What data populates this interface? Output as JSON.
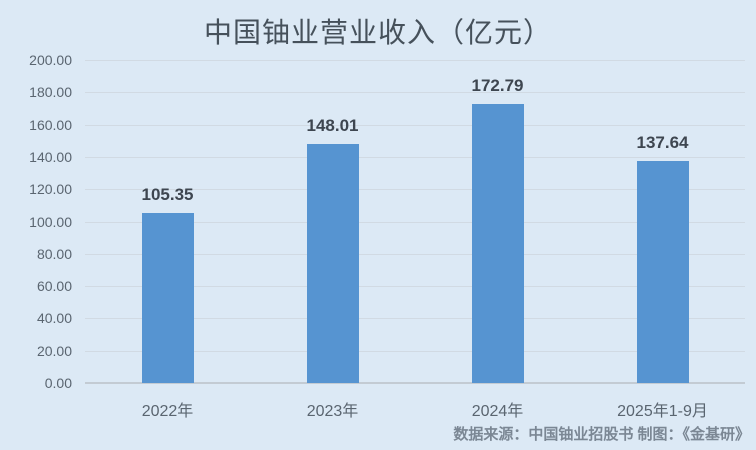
{
  "chart_data": {
    "type": "bar",
    "title": "中国铀业营业收入（亿元）",
    "categories": [
      "2022年",
      "2023年",
      "2024年",
      "2025年1-9月"
    ],
    "values": [
      105.35,
      148.01,
      172.79,
      137.64
    ],
    "value_labels": [
      "105.35",
      "148.01",
      "172.79",
      "137.64"
    ],
    "ylabel": "",
    "xlabel": "",
    "ylim": [
      0,
      200
    ],
    "ytick_step": 20,
    "ytick_labels": [
      "0.00",
      "20.00",
      "40.00",
      "60.00",
      "80.00",
      "100.00",
      "120.00",
      "140.00",
      "160.00",
      "180.00",
      "200.00"
    ],
    "grid": "horizontal",
    "legend_position": "none",
    "bar_color": "#5694D1",
    "background_color": "#DCE9F5"
  },
  "footer": {
    "source_note": "数据来源：中国铀业招股书 制图：《金基研》"
  },
  "colors": {
    "background": "#DCE9F5",
    "bar": "#5694D1",
    "title_text": "#46515B",
    "axis_text": "#5A6570",
    "data_label_text": "#3E4650",
    "gridline": "#D1DAE3",
    "baseline": "#C3CBD3",
    "source_text": "#7B8794"
  }
}
